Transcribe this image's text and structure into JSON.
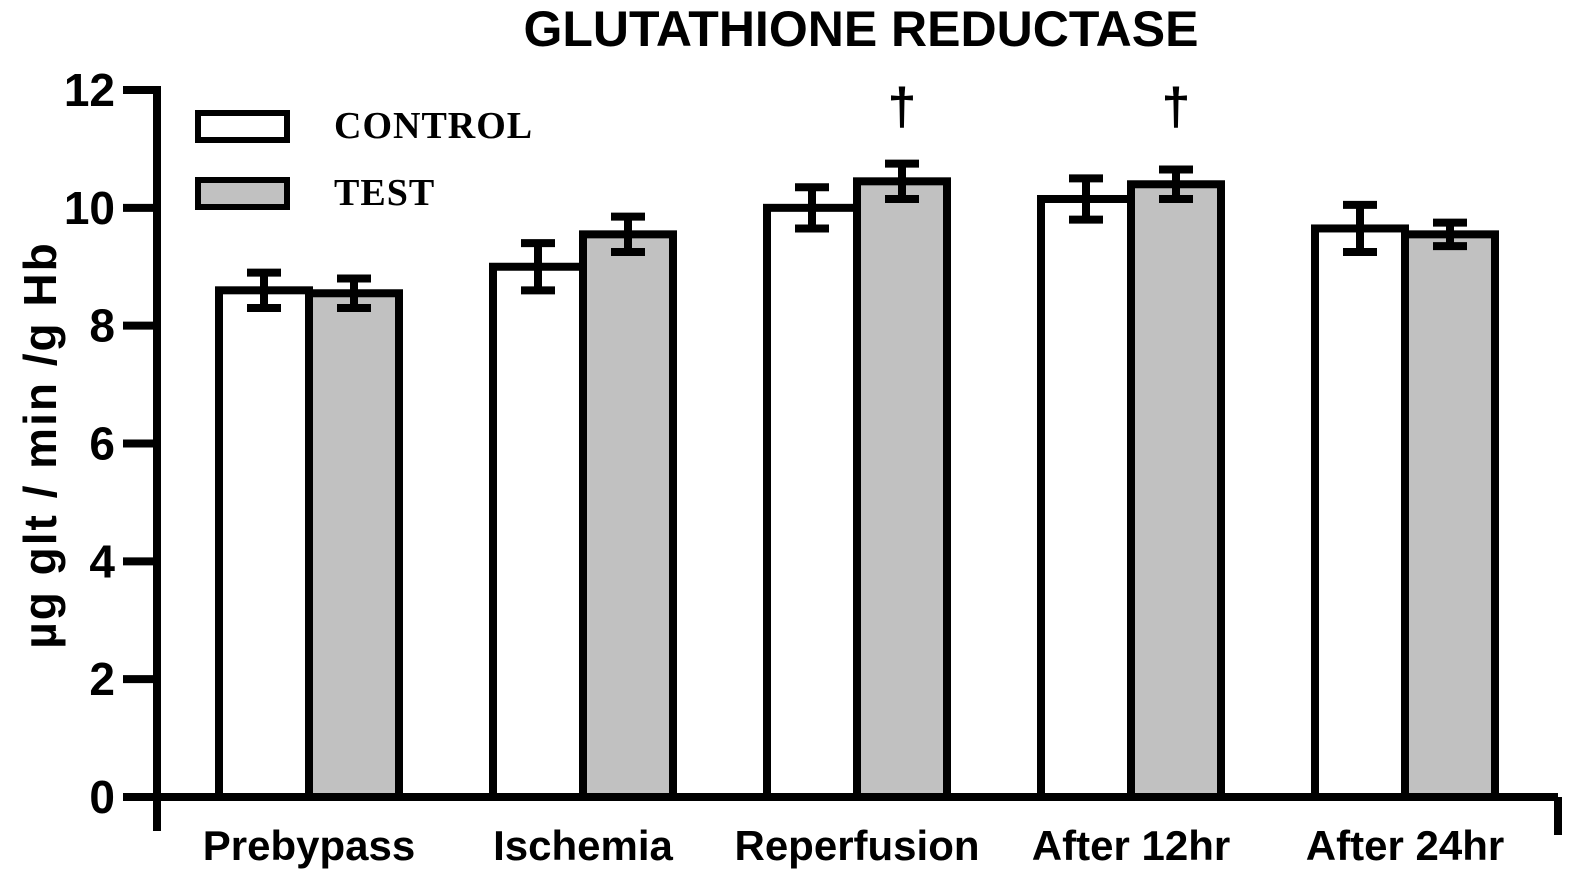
{
  "chart_data": {
    "type": "bar",
    "title": "GLUTATHIONE REDUCTASE",
    "ylabel": "µg glt / min /g Hb",
    "xlabel": "",
    "ylim": [
      0,
      12
    ],
    "yticks": [
      0,
      2,
      4,
      6,
      8,
      10,
      12
    ],
    "categories": [
      "Prebypass",
      "Ischemia",
      "Reperfusion",
      "After 12hr",
      "After 24hr"
    ],
    "series": [
      {
        "name": "CONTROL",
        "fill": "#ffffff",
        "values": [
          8.6,
          9.0,
          10.0,
          10.15,
          9.65
        ],
        "errors": [
          0.3,
          0.4,
          0.35,
          0.35,
          0.4
        ],
        "sig_markers": [
          "",
          "",
          "",
          "",
          ""
        ]
      },
      {
        "name": "TEST",
        "fill": "#c1c1c1",
        "values": [
          8.55,
          9.55,
          10.45,
          10.4,
          9.55
        ],
        "errors": [
          0.25,
          0.3,
          0.3,
          0.25,
          0.2
        ],
        "sig_markers": [
          "",
          "",
          "†",
          "†",
          ""
        ]
      }
    ],
    "annotation_symbol": "†",
    "bar_outline_color": "#000000",
    "legend_position": "top-left",
    "grid": false
  }
}
